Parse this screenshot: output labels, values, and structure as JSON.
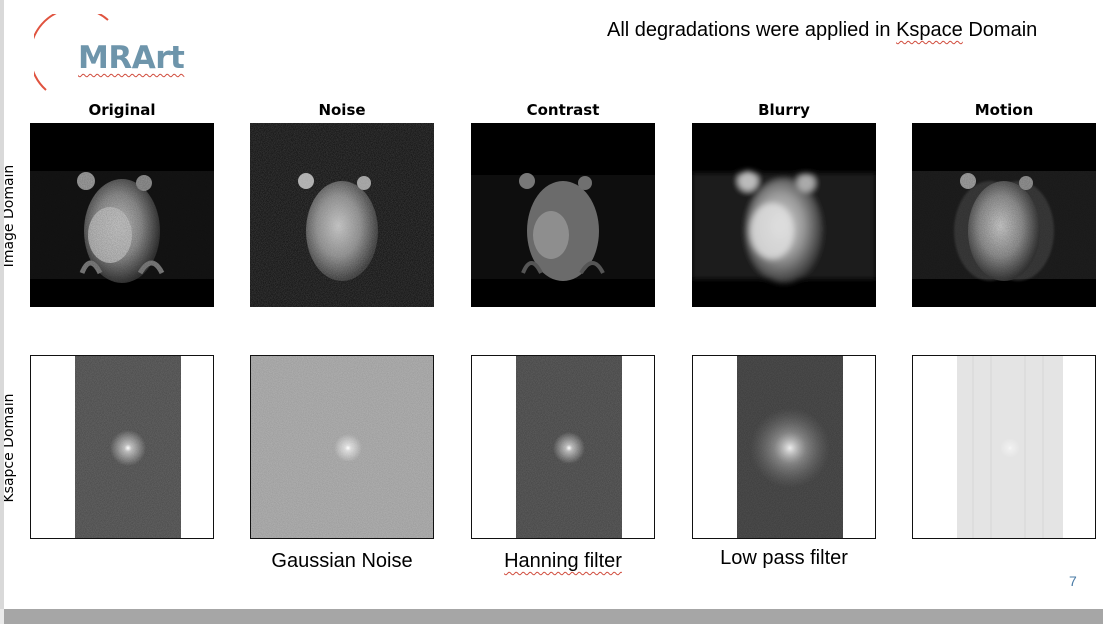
{
  "logo": {
    "text": "MRArt",
    "text_color": "#6e95ab",
    "arc_color": "#e0533f"
  },
  "headline": {
    "pre": "All degradations were applied in ",
    "underlined": "Kspace",
    "post": " Domain"
  },
  "columns": [
    "Original",
    "Noise",
    "Contrast",
    "Blurry",
    "Motion"
  ],
  "rows": {
    "image_domain": "Image Domain",
    "kspace_domain": "Ksapce Domain"
  },
  "captions": {
    "noise": "Gaussian Noise",
    "contrast": "Hanning filter",
    "blurry": "Low pass filter"
  },
  "page_number": "7"
}
